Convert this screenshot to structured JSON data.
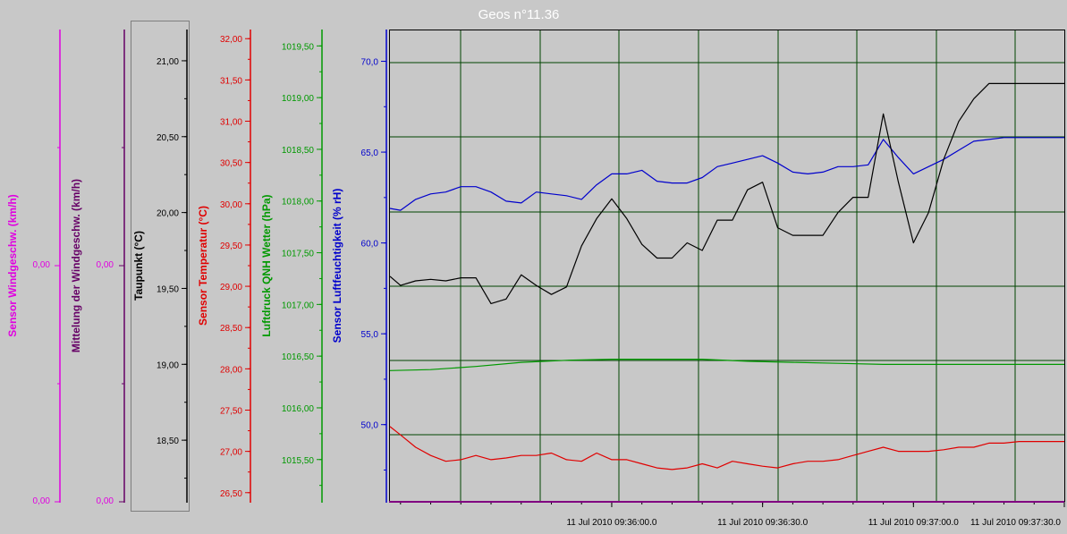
{
  "title": "Geos n°11.36",
  "colors": {
    "magenta": "#e000e0",
    "purple": "#660066",
    "black": "#000000",
    "red": "#e00000",
    "green": "#009900",
    "blue": "#0000cc",
    "grid": "#004400",
    "background": "#c8c8c8"
  },
  "chart_data": {
    "type": "line",
    "x_tick_labels": [
      "11 Jul 2010 09:36:00.0",
      "11 Jul 2010 09:36:30.0",
      "11 Jul 2010 09:37:00.0",
      "11 Jul 2010 09:37:30.0"
    ],
    "x_time_seconds_range": [
      -14.7,
      30
    ],
    "axes": [
      {
        "id": "wind_sensor",
        "label": "Sensor Windgeschw. (km/h)",
        "ticks": [
          "0,00",
          "0,00"
        ],
        "color": "#e000e0"
      },
      {
        "id": "wind_avg",
        "label": "Mittelung der Windgeschw. (km/h)",
        "ticks": [
          "0,00",
          "0,00"
        ],
        "color": "#660066"
      },
      {
        "id": "dewpoint",
        "label": "Taupunkt (°C)",
        "range": [
          18.1,
          21.2
        ],
        "ticks": [
          "21,00",
          "20,50",
          "20,00",
          "19,50",
          "19,00",
          "18,50"
        ],
        "color": "#000000"
      },
      {
        "id": "temperature",
        "label": "Sensor Temperatur (°C)",
        "range": [
          26.4,
          32.1
        ],
        "ticks": [
          "32,00",
          "31,50",
          "31,00",
          "30,50",
          "30,00",
          "29,50",
          "29,00",
          "28,50",
          "28,00",
          "27,50",
          "27,00",
          "26,50"
        ],
        "color": "#e00000"
      },
      {
        "id": "pressure",
        "label": "Luftdruck QNH Wetter (hPa)",
        "range": [
          1015.1,
          1019.65
        ],
        "ticks": [
          "1019,50",
          "1019,00",
          "1018,50",
          "1018,00",
          "1017,50",
          "1017,00",
          "1016,50",
          "1016,00",
          "1015,50"
        ],
        "color": "#009900"
      },
      {
        "id": "humidity",
        "label": "Sensor Luftfeuchtigkeit (% rH)",
        "range": [
          45.8,
          71.7
        ],
        "ticks": [
          "70,0",
          "65,0",
          "60,0",
          "55,0",
          "50,0"
        ],
        "color": "#0000cc"
      }
    ],
    "series": [
      {
        "axis": "humidity",
        "color": "#0000cc",
        "x": [
          -14.7,
          -14,
          -13,
          -12,
          -11,
          -10,
          -9,
          -8,
          -7,
          -6,
          -5,
          -4,
          -3,
          -2,
          -1,
          0,
          1,
          2,
          3,
          4,
          5,
          6,
          7,
          8,
          9,
          10,
          11,
          12,
          13,
          14,
          15,
          16,
          17,
          18,
          19,
          20,
          21,
          22,
          23,
          24,
          25,
          26,
          27,
          28,
          29,
          30
        ],
        "values": [
          61.9,
          61.8,
          62.4,
          62.7,
          62.8,
          63.1,
          63.1,
          62.8,
          62.3,
          62.2,
          62.8,
          62.7,
          62.6,
          62.4,
          63.2,
          63.8,
          63.8,
          64.0,
          63.4,
          63.3,
          63.3,
          63.6,
          64.2,
          64.4,
          64.6,
          64.8,
          64.4,
          63.9,
          63.8,
          63.9,
          64.2,
          64.2,
          64.3,
          65.7,
          64.7,
          63.8,
          64.2,
          64.6,
          65.1,
          65.6,
          65.7,
          65.8,
          65.8,
          65.8,
          65.8,
          65.8
        ]
      },
      {
        "axis": "dewpoint",
        "color": "#000000",
        "x": [
          -14.7,
          -14,
          -13,
          -12,
          -11,
          -10,
          -9,
          -8,
          -7,
          -6,
          -5,
          -4,
          -3,
          -2,
          -1,
          0,
          1,
          2,
          3,
          4,
          5,
          6,
          7,
          8,
          9,
          10,
          11,
          12,
          13,
          14,
          15,
          16,
          17,
          18,
          19,
          20,
          21,
          22,
          23,
          24,
          25,
          26,
          27,
          28,
          29,
          30
        ],
        "values": [
          19.58,
          19.52,
          19.55,
          19.56,
          19.55,
          19.57,
          19.57,
          19.4,
          19.43,
          19.59,
          19.52,
          19.46,
          19.51,
          19.78,
          19.96,
          20.09,
          19.96,
          19.79,
          19.7,
          19.7,
          19.8,
          19.75,
          19.95,
          19.95,
          20.15,
          20.2,
          19.9,
          19.85,
          19.85,
          19.85,
          20.0,
          20.1,
          20.1,
          20.65,
          20.2,
          19.8,
          20.0,
          20.35,
          20.6,
          20.75,
          20.85,
          20.85,
          20.85,
          20.85,
          20.85,
          20.85
        ]
      },
      {
        "axis": "pressure",
        "color": "#009900",
        "x": [
          -14.7,
          -12,
          -9,
          -6,
          -3,
          0,
          3,
          6,
          9,
          12,
          15,
          18,
          21,
          24,
          27,
          30
        ],
        "values": [
          1016.36,
          1016.37,
          1016.4,
          1016.44,
          1016.46,
          1016.47,
          1016.47,
          1016.47,
          1016.45,
          1016.44,
          1016.43,
          1016.42,
          1016.42,
          1016.42,
          1016.42,
          1016.42
        ]
      },
      {
        "axis": "temperature",
        "color": "#e00000",
        "x": [
          -14.7,
          -14,
          -13,
          -12,
          -11,
          -10,
          -9,
          -8,
          -7,
          -6,
          -5,
          -4,
          -3,
          -2,
          -1,
          0,
          1,
          2,
          3,
          4,
          5,
          6,
          7,
          8,
          9,
          10,
          11,
          12,
          13,
          14,
          15,
          16,
          17,
          18,
          19,
          20,
          21,
          22,
          23,
          24,
          25,
          26,
          27,
          28,
          29,
          30
        ],
        "values": [
          27.3,
          27.2,
          27.05,
          26.95,
          26.88,
          26.9,
          26.95,
          26.9,
          26.92,
          26.95,
          26.95,
          26.98,
          26.9,
          26.88,
          26.98,
          26.9,
          26.9,
          26.85,
          26.8,
          26.78,
          26.8,
          26.85,
          26.8,
          26.88,
          26.85,
          26.82,
          26.8,
          26.85,
          26.88,
          26.88,
          26.9,
          26.95,
          27.0,
          27.05,
          27.0,
          27.0,
          27.0,
          27.02,
          27.05,
          27.05,
          27.1,
          27.1,
          27.12,
          27.12,
          27.12,
          27.12
        ]
      }
    ]
  }
}
